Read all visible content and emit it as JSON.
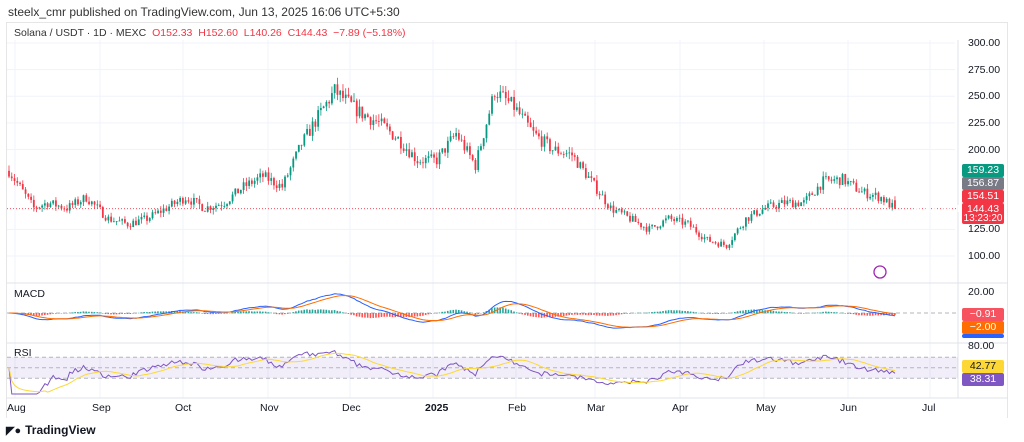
{
  "header": {
    "published": "steelx_cmr published on TradingView.com, Jun 13, 2025 16:06 UTC+5:30"
  },
  "legend": {
    "symbol": "Solana / USDT · 1D · MEXC",
    "open": "O152.33",
    "high": "H152.60",
    "low": "L140.26",
    "close": "C144.43",
    "change": "−7.89 (−5.18%)"
  },
  "price_axis": [
    "300.00",
    "275.00",
    "250.00",
    "225.00",
    "200.00",
    "125.00",
    "100.00"
  ],
  "price_tags": [
    {
      "text": "159.23",
      "color": "#089981"
    },
    {
      "text": "156.87",
      "color": "#787b86"
    },
    {
      "text": "154.51",
      "color": "#f23645"
    },
    {
      "text": "144.43",
      "color": "#f23645"
    },
    {
      "text": "13:23:20",
      "color": "#f23645"
    }
  ],
  "symbol_tag": "SOLUSDT",
  "macd": {
    "label": "MACD",
    "axis": "20.00",
    "values": [
      "−0.91",
      "−2.00"
    ],
    "colors": [
      "#f7525f",
      "#ff6d00",
      "#2962ff"
    ]
  },
  "rsi": {
    "label": "RSI",
    "axis": "80.00",
    "values": [
      "42.77",
      "38.31"
    ],
    "colors": [
      "#fdd835",
      "#7e57c2"
    ]
  },
  "time_axis": [
    "Aug",
    "Sep",
    "Oct",
    "Nov",
    "Dec",
    "2025",
    "Feb",
    "Mar",
    "Apr",
    "May",
    "Jun",
    "Jul"
  ],
  "footer": {
    "brand": "TradingView"
  },
  "chart_data": {
    "type": "candlestick",
    "symbol": "SOLUSDT",
    "interval": "1D",
    "ylim": [
      90,
      305
    ],
    "weekly_close_approx": {
      "dates": [
        "2024-07-27",
        "2024-08-05",
        "2024-08-10",
        "2024-08-17",
        "2024-08-24",
        "2024-09-01",
        "2024-09-08",
        "2024-09-15",
        "2024-09-22",
        "2024-09-29",
        "2024-10-06",
        "2024-10-13",
        "2024-10-20",
        "2024-10-27",
        "2024-11-03",
        "2024-11-10",
        "2024-11-17",
        "2024-11-22",
        "2024-12-01",
        "2024-12-08",
        "2024-12-15",
        "2024-12-22",
        "2024-12-29",
        "2025-01-05",
        "2025-01-12",
        "2025-01-19",
        "2025-01-26",
        "2025-02-02",
        "2025-02-09",
        "2025-02-16",
        "2025-02-23",
        "2025-03-02",
        "2025-03-09",
        "2025-03-16",
        "2025-03-23",
        "2025-03-30",
        "2025-04-06",
        "2025-04-13",
        "2025-04-20",
        "2025-04-27",
        "2025-05-04",
        "2025-05-11",
        "2025-05-18",
        "2025-05-25",
        "2025-06-01",
        "2025-06-08",
        "2025-06-13"
      ],
      "close": [
        180,
        145,
        150,
        145,
        155,
        135,
        130,
        135,
        145,
        155,
        145,
        150,
        165,
        175,
        165,
        205,
        235,
        255,
        235,
        225,
        210,
        190,
        190,
        215,
        185,
        255,
        240,
        215,
        200,
        195,
        170,
        145,
        135,
        125,
        135,
        130,
        115,
        110,
        135,
        145,
        150,
        150,
        170,
        172,
        160,
        155,
        144
      ]
    },
    "last": {
      "open": 152.33,
      "high": 152.6,
      "low": 140.26,
      "close": 144.43
    }
  }
}
